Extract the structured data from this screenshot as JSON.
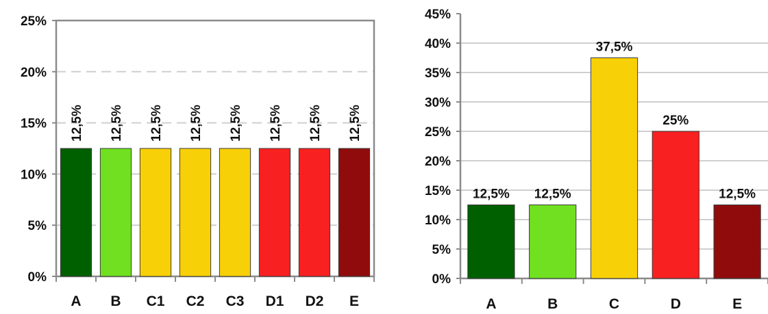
{
  "chart_data": [
    {
      "type": "bar",
      "categories": [
        "A",
        "B",
        "C1",
        "C2",
        "C3",
        "D1",
        "D2",
        "E"
      ],
      "values": [
        12.5,
        12.5,
        12.5,
        12.5,
        12.5,
        12.5,
        12.5,
        12.5
      ],
      "data_labels": [
        "12,5%",
        "12,5%",
        "12,5%",
        "12,5%",
        "12,5%",
        "12,5%",
        "12,5%",
        "12,5%"
      ],
      "colors": [
        "#006000",
        "#70e020",
        "#f8d008",
        "#f8d008",
        "#f8d008",
        "#f82020",
        "#f82020",
        "#900c0c"
      ],
      "ylim": [
        0,
        25
      ],
      "yticks": [
        0,
        5,
        10,
        15,
        20,
        25
      ],
      "ytick_labels": [
        "0%",
        "5%",
        "10%",
        "15%",
        "20%",
        "25%"
      ],
      "data_label_orientation": "vertical",
      "grid": true,
      "title": "",
      "xlabel": "",
      "ylabel": ""
    },
    {
      "type": "bar",
      "categories": [
        "A",
        "B",
        "C",
        "D",
        "E"
      ],
      "values": [
        12.5,
        12.5,
        37.5,
        25,
        12.5
      ],
      "data_labels": [
        "12,5%",
        "12,5%",
        "37,5%",
        "25%",
        "12,5%"
      ],
      "colors": [
        "#006000",
        "#70e020",
        "#f8d008",
        "#f82020",
        "#900c0c"
      ],
      "ylim": [
        0,
        45
      ],
      "yticks": [
        0,
        5,
        10,
        15,
        20,
        25,
        30,
        35,
        40,
        45
      ],
      "ytick_labels": [
        "0%",
        "5%",
        "10%",
        "15%",
        "20%",
        "25%",
        "30%",
        "35%",
        "40%",
        "45%"
      ],
      "data_label_orientation": "horizontal",
      "grid": true,
      "title": "",
      "xlabel": "",
      "ylabel": ""
    }
  ]
}
